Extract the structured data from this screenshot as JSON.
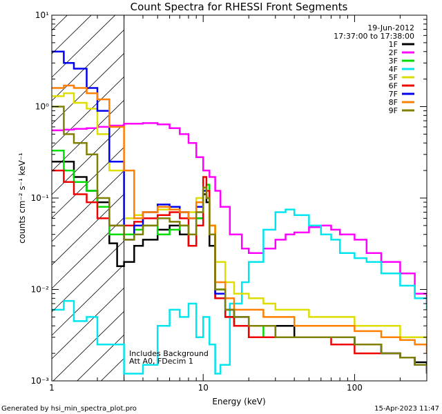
{
  "chart_data": {
    "type": "line",
    "title": "Count Spectra for RHESSI Front Segments",
    "xlabel": "Energy (keV)",
    "ylabel": "counts cm⁻² s⁻¹ keV⁻¹",
    "x_scale": "log",
    "y_scale": "log",
    "xlim": [
      1,
      300
    ],
    "ylim": [
      0.001,
      10
    ],
    "x_ticks": [
      {
        "value": 1,
        "label": "1"
      },
      {
        "value": 10,
        "label": "10"
      },
      {
        "value": 100,
        "label": "100"
      }
    ],
    "y_ticks": [
      {
        "value": 0.001,
        "label": "10⁻³"
      },
      {
        "value": 0.01,
        "label": "10⁻²"
      },
      {
        "value": 0.1,
        "label": "10⁻¹"
      },
      {
        "value": 1,
        "label": "10⁰"
      },
      {
        "value": 10,
        "label": "10¹"
      }
    ],
    "shaded_region_x": [
      1,
      3
    ],
    "vertical_marker_x": 3,
    "date_label": "19-Jun-2012",
    "time_range_label": "17:37:00 to 17:38:00",
    "annotations": [
      "Includes Background",
      "Att A0, FDecim 1"
    ],
    "series": [
      {
        "name": "1F",
        "color": "#000000",
        "x": [
          1,
          1.2,
          1.4,
          1.7,
          2,
          2.4,
          2.7,
          3,
          3.5,
          4,
          5,
          6,
          7,
          8,
          9,
          10,
          10.5,
          11,
          12,
          14,
          16,
          20,
          25,
          30,
          40,
          50,
          70,
          100,
          150,
          200,
          250,
          300
        ],
        "y": [
          0.25,
          0.25,
          0.17,
          0.12,
          0.09,
          0.032,
          0.018,
          0.02,
          0.03,
          0.035,
          0.045,
          0.05,
          0.04,
          0.03,
          0.06,
          0.11,
          0.09,
          0.03,
          0.008,
          0.005,
          0.004,
          0.003,
          0.003,
          0.004,
          0.003,
          0.003,
          0.003,
          0.0025,
          0.002,
          0.0018,
          0.0016,
          0.0015
        ]
      },
      {
        "name": "2F",
        "color": "#ff00ff",
        "x": [
          1,
          1.2,
          1.4,
          1.7,
          2,
          2.4,
          3,
          4,
          5,
          6,
          7,
          8,
          9,
          10,
          11,
          12,
          13,
          15,
          18,
          20,
          25,
          30,
          35,
          40,
          50,
          60,
          70,
          80,
          100,
          120,
          150,
          200,
          250,
          300
        ],
        "y": [
          0.55,
          0.56,
          0.57,
          0.58,
          0.6,
          0.62,
          0.65,
          0.66,
          0.64,
          0.58,
          0.5,
          0.4,
          0.28,
          0.2,
          0.17,
          0.12,
          0.08,
          0.04,
          0.028,
          0.025,
          0.028,
          0.035,
          0.04,
          0.042,
          0.048,
          0.05,
          0.045,
          0.04,
          0.035,
          0.025,
          0.02,
          0.015,
          0.009,
          0.007
        ]
      },
      {
        "name": "3F",
        "color": "#00dd00",
        "x": [
          1,
          1.2,
          1.4,
          1.7,
          2,
          2.4,
          3,
          3.5,
          4,
          5,
          6,
          7,
          8,
          9,
          10,
          10.5,
          11,
          12,
          14,
          16,
          20,
          25,
          30,
          40,
          50,
          70,
          100,
          150,
          200,
          250,
          300
        ],
        "y": [
          0.33,
          0.2,
          0.15,
          0.12,
          0.08,
          0.04,
          0.04,
          0.045,
          0.05,
          0.04,
          0.045,
          0.05,
          0.04,
          0.06,
          0.12,
          0.14,
          0.05,
          0.01,
          0.006,
          0.004,
          0.004,
          0.003,
          0.003,
          0.003,
          0.003,
          0.003,
          0.0025,
          0.002,
          0.0018,
          0.0015,
          0.0012
        ]
      },
      {
        "name": "4F",
        "color": "#00e5ee",
        "x": [
          1,
          1.2,
          1.4,
          1.7,
          2,
          2.4,
          3,
          4,
          5,
          6,
          7,
          8,
          9,
          10,
          11,
          12,
          13,
          15,
          18,
          20,
          25,
          30,
          35,
          40,
          50,
          60,
          70,
          80,
          100,
          120,
          150,
          200,
          250,
          300
        ],
        "y": [
          0.006,
          0.0075,
          0.0045,
          0.005,
          0.0025,
          0.0025,
          0.0012,
          0.0015,
          0.004,
          0.006,
          0.005,
          0.007,
          0.003,
          0.005,
          0.0025,
          0.0012,
          0.0015,
          0.007,
          0.012,
          0.02,
          0.045,
          0.07,
          0.075,
          0.065,
          0.05,
          0.04,
          0.035,
          0.025,
          0.022,
          0.02,
          0.015,
          0.011,
          0.008,
          0.006
        ]
      },
      {
        "name": "5F",
        "color": "#dddd00",
        "x": [
          1,
          1.2,
          1.4,
          1.7,
          2,
          2.4,
          3,
          3.5,
          4,
          5,
          6,
          7,
          8,
          9,
          10,
          10.5,
          11,
          12,
          14,
          16,
          20,
          25,
          30,
          40,
          50,
          70,
          100,
          150,
          200,
          250,
          300
        ],
        "y": [
          1.3,
          1.4,
          1.1,
          0.95,
          0.5,
          0.2,
          0.06,
          0.065,
          0.07,
          0.075,
          0.08,
          0.07,
          0.07,
          0.1,
          0.12,
          0.1,
          0.05,
          0.02,
          0.012,
          0.009,
          0.008,
          0.007,
          0.006,
          0.006,
          0.005,
          0.005,
          0.004,
          0.004,
          0.003,
          0.003,
          0.0025
        ]
      },
      {
        "name": "6F",
        "color": "#ee0000",
        "x": [
          1,
          1.2,
          1.4,
          1.7,
          2,
          2.4,
          3,
          3.5,
          4,
          5,
          6,
          7,
          8,
          9,
          10,
          10.5,
          11,
          12,
          14,
          16,
          20,
          25,
          30,
          40,
          50,
          70,
          100,
          150,
          200,
          250,
          300
        ],
        "y": [
          0.2,
          0.15,
          0.11,
          0.09,
          0.06,
          0.05,
          0.05,
          0.055,
          0.06,
          0.065,
          0.07,
          0.06,
          0.03,
          0.05,
          0.17,
          0.12,
          0.04,
          0.008,
          0.005,
          0.004,
          0.003,
          0.003,
          0.003,
          0.003,
          0.003,
          0.0025,
          0.002,
          0.002,
          0.0018,
          0.0015,
          0.0013
        ]
      },
      {
        "name": "7F",
        "color": "#0000ee",
        "x": [
          1,
          1.2,
          1.4,
          1.7,
          2,
          2.4,
          3,
          3.5,
          4,
          5,
          6,
          7,
          8,
          9,
          10,
          10.5,
          11,
          12,
          14,
          16,
          20,
          25,
          30,
          40,
          50,
          70,
          100,
          150,
          200,
          250,
          300
        ],
        "y": [
          4,
          3,
          2.6,
          1.6,
          0.9,
          0.25,
          0.035,
          0.05,
          0.07,
          0.085,
          0.08,
          0.07,
          0.06,
          0.08,
          0.12,
          0.1,
          0.04,
          0.009,
          0.006,
          0.005,
          0.004,
          0.004,
          0.003,
          0.003,
          0.003,
          0.003,
          0.0025,
          0.002,
          0.0018,
          0.0015,
          0.0012
        ]
      },
      {
        "name": "8F",
        "color": "#ff7f00",
        "x": [
          1,
          1.2,
          1.4,
          1.7,
          2,
          2.4,
          3,
          3.5,
          4,
          5,
          6,
          7,
          8,
          9,
          10,
          10.5,
          11,
          12,
          14,
          16,
          20,
          25,
          30,
          40,
          50,
          70,
          100,
          150,
          200,
          250,
          300
        ],
        "y": [
          1.6,
          1.7,
          1.6,
          1.4,
          1.2,
          0.6,
          0.2,
          0.06,
          0.07,
          0.08,
          0.075,
          0.07,
          0.06,
          0.09,
          0.13,
          0.1,
          0.05,
          0.012,
          0.008,
          0.006,
          0.006,
          0.005,
          0.005,
          0.004,
          0.004,
          0.004,
          0.0035,
          0.003,
          0.0028,
          0.0025,
          0.002
        ]
      },
      {
        "name": "9F",
        "color": "#808000",
        "x": [
          1,
          1.2,
          1.4,
          1.7,
          2,
          2.4,
          3,
          3.5,
          4,
          5,
          6,
          7,
          8,
          9,
          10,
          10.5,
          11,
          12,
          14,
          16,
          20,
          25,
          30,
          40,
          50,
          70,
          100,
          150,
          200,
          250,
          300
        ],
        "y": [
          1.0,
          0.5,
          0.4,
          0.3,
          0.1,
          0.05,
          0.035,
          0.04,
          0.05,
          0.06,
          0.055,
          0.05,
          0.04,
          0.07,
          0.13,
          0.1,
          0.04,
          0.01,
          0.006,
          0.005,
          0.004,
          0.004,
          0.003,
          0.003,
          0.003,
          0.003,
          0.0025,
          0.002,
          0.0018,
          0.0015,
          0.0012
        ]
      }
    ]
  },
  "footer": {
    "left": "Generated by hsi_min_spectra_plot.pro",
    "right": "15-Apr-2023 11:47"
  }
}
